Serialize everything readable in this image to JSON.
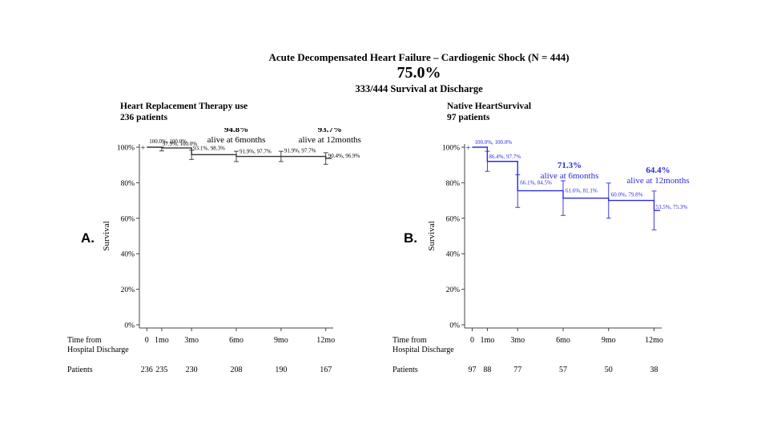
{
  "header": {
    "title": "Acute Decompensated Heart Failure – Cardiogenic Shock (N = 444)",
    "big_percent": "75.0%",
    "subtitle": "333/444 Survival at Discharge"
  },
  "panels": [
    {
      "letter": "A.",
      "title": "Heart Replacement Therapy use",
      "patients_label": "236 patients",
      "color": "#333333",
      "label_color": "#000000"
    },
    {
      "letter": "B.",
      "title": "Native HeartSurvival",
      "patients_label": "97 patients",
      "color": "#2b2bdd",
      "label_color": "#2b2bdd"
    }
  ],
  "chart_data": [
    {
      "type": "line",
      "subtype": "kaplan-meier step",
      "title": "Heart Replacement Therapy use",
      "ylabel": "Survival",
      "xlabel": "Time from Hospital Discharge",
      "ylim": [
        0,
        100
      ],
      "y_ticks": [
        "0%",
        "20%",
        "40%",
        "60%",
        "80%",
        "100%"
      ],
      "y_tick_values": [
        0,
        20,
        40,
        60,
        80,
        100
      ],
      "x_ticks": [
        "0",
        "1mo",
        "3mo",
        "6mo",
        "9mo",
        "12mo"
      ],
      "x_tick_values": [
        0,
        1,
        3,
        6,
        9,
        12
      ],
      "xlim": [
        -0.5,
        12.5
      ],
      "steps": [
        {
          "t": 0,
          "s": 100
        },
        {
          "t": 1,
          "s": 99.6
        },
        {
          "t": 3,
          "s": 95.8
        },
        {
          "t": 6,
          "s": 94.8
        },
        {
          "t": 9,
          "s": 94.8
        },
        {
          "t": 12,
          "s": 93.7
        }
      ],
      "ci_bars": [
        {
          "t": 1,
          "lo": 97.9,
          "hi": 100
        },
        {
          "t": 3,
          "lo": 93.1,
          "hi": 98.3
        },
        {
          "t": 6,
          "lo": 91.9,
          "hi": 97.7
        },
        {
          "t": 9,
          "lo": 91.9,
          "hi": 97.7
        },
        {
          "t": 12,
          "lo": 90.4,
          "hi": 96.9
        }
      ],
      "ci_labels": [
        {
          "t": 0,
          "text": "100.0%, 100.0%"
        },
        {
          "t": 1,
          "text": "97.9%, 100.0%"
        },
        {
          "t": 3,
          "text": "93.1%, 98.3%"
        },
        {
          "t": 6,
          "text": "91.9%, 97.7%"
        },
        {
          "t": 9,
          "text": "91.9%, 97.7%"
        },
        {
          "t": 12,
          "text": "90.4%, 96.9%"
        }
      ],
      "annotations": [
        {
          "t": 6,
          "value": "94.8%",
          "text": "alive at 6months"
        },
        {
          "t": 12,
          "value": "93.7%",
          "text": "alive at 12months"
        }
      ],
      "risk_table": {
        "row_label": "Patients",
        "values": [
          "236",
          "235",
          "230",
          "208",
          "190",
          "167"
        ]
      }
    },
    {
      "type": "line",
      "subtype": "kaplan-meier step",
      "title": "Native HeartSurvival",
      "ylabel": "Survival",
      "xlabel": "Time from Hospital Discharge",
      "ylim": [
        0,
        100
      ],
      "y_ticks": [
        "0%",
        "20%",
        "40%",
        "60%",
        "80%",
        "100%"
      ],
      "y_tick_values": [
        0,
        20,
        40,
        60,
        80,
        100
      ],
      "x_ticks": [
        "0",
        "1mo",
        "3mo",
        "6mo",
        "9mo",
        "12mo"
      ],
      "x_tick_values": [
        0,
        1,
        3,
        6,
        9,
        12
      ],
      "xlim": [
        -0.5,
        12.5
      ],
      "steps": [
        {
          "t": 0,
          "s": 100
        },
        {
          "t": 1,
          "s": 92
        },
        {
          "t": 3,
          "s": 75.5
        },
        {
          "t": 6,
          "s": 71.3
        },
        {
          "t": 9,
          "s": 70
        },
        {
          "t": 12,
          "s": 64.4
        }
      ],
      "ci_bars": [
        {
          "t": 1,
          "lo": 86.4,
          "hi": 97.7
        },
        {
          "t": 3,
          "lo": 66.1,
          "hi": 84.5
        },
        {
          "t": 6,
          "lo": 61.6,
          "hi": 81.1
        },
        {
          "t": 9,
          "lo": 60.0,
          "hi": 79.8
        },
        {
          "t": 12,
          "lo": 53.5,
          "hi": 75.3
        }
      ],
      "ci_labels": [
        {
          "t": 0,
          "text": "100.0%, 100.0%"
        },
        {
          "t": 1,
          "text": "86.4%, 97.7%"
        },
        {
          "t": 3,
          "text": "66.1%, 84.5%"
        },
        {
          "t": 6,
          "text": "61.6%, 81.1%"
        },
        {
          "t": 9,
          "text": "60.0%, 79.8%"
        },
        {
          "t": 12,
          "text": "53.5%, 75.3%"
        }
      ],
      "annotations": [
        {
          "t": 6,
          "value": "71.3%",
          "text": "alive at 6months"
        },
        {
          "t": 12,
          "value": "64.4%",
          "text": "alive at 12months"
        }
      ],
      "risk_table": {
        "row_label": "Patients",
        "values": [
          "97",
          "88",
          "77",
          "57",
          "50",
          "38"
        ]
      }
    }
  ]
}
